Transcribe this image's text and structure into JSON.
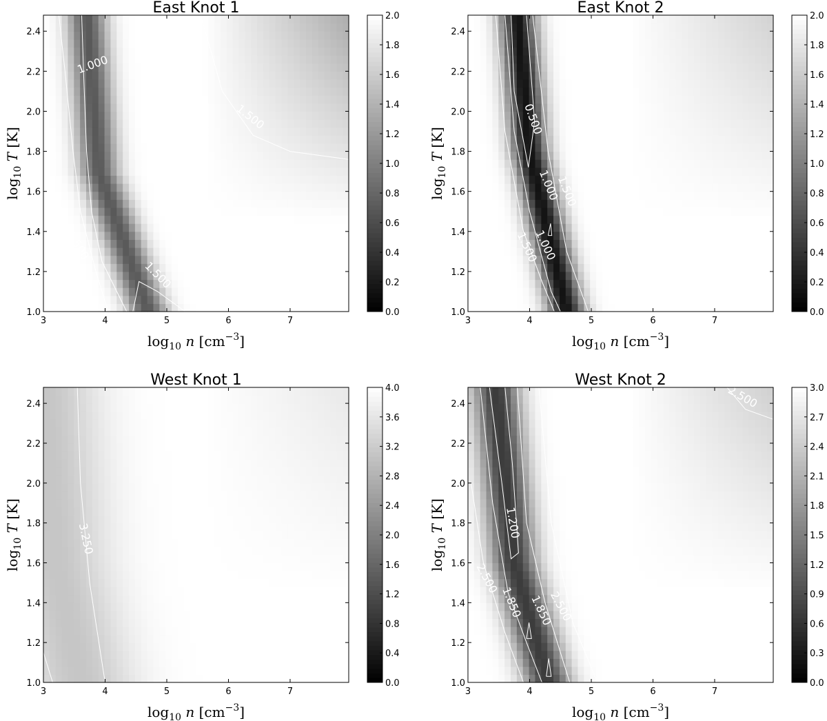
{
  "chart_data": [
    {
      "type": "heatmap",
      "title": "East Knot 1",
      "xlabel": "log10 n [cm^-3]",
      "ylabel": "log10 T [K]",
      "xlim": [
        3,
        7.95
      ],
      "ylim": [
        1.0,
        2.48
      ],
      "xticks": [
        "3",
        "4",
        "5",
        "6",
        "7"
      ],
      "yticks": [
        "1.0",
        "1.2",
        "1.4",
        "1.6",
        "1.8",
        "2.0",
        "2.2",
        "2.4"
      ],
      "colorbar": {
        "min": 0.0,
        "max": 2.0,
        "ticks": [
          "0.0",
          "0.2",
          "0.4",
          "0.6",
          "0.8",
          "1.0",
          "1.2",
          "1.4",
          "1.6",
          "1.8",
          "2.0"
        ]
      },
      "colormap": "gray",
      "field": {
        "valley": [
          [
            3.7,
            2.48
          ],
          [
            3.9,
            1.7
          ],
          [
            4.7,
            1.0
          ]
        ],
        "valley_min": 0.7,
        "valley_width": 0.32,
        "base": 2.0,
        "highn_highT_value": 1.35
      },
      "contours": [
        {
          "level": "1.000",
          "paths": [
            [
              [
                3.62,
                2.48
              ],
              [
                3.65,
                2.2
              ],
              [
                3.7,
                1.8
              ],
              [
                3.78,
                1.5
              ],
              [
                3.95,
                1.25
              ],
              [
                4.35,
                1.0
              ]
            ]
          ]
        },
        {
          "level": "1.500",
          "paths": [
            [
              [
                3.25,
                2.48
              ],
              [
                3.35,
                2.2
              ],
              [
                3.48,
                1.8
              ],
              [
                3.6,
                1.5
              ],
              [
                3.85,
                1.2
              ],
              [
                4.05,
                1.0
              ]
            ]
          ]
        },
        {
          "level": "1.500",
          "paths": [
            [
              [
                4.45,
                1.0
              ],
              [
                4.55,
                1.15
              ],
              [
                4.85,
                1.1
              ],
              [
                5.3,
                1.0
              ]
            ]
          ]
        },
        {
          "level": "1.500",
          "paths": [
            [
              [
                5.55,
                2.48
              ],
              [
                5.9,
                2.1
              ],
              [
                6.4,
                1.88
              ],
              [
                7.0,
                1.8
              ],
              [
                7.95,
                1.76
              ]
            ]
          ]
        }
      ],
      "contour_labels": [
        {
          "text": "1.000",
          "x": 3.8,
          "y": 2.23,
          "angle": -20
        },
        {
          "text": "1.500",
          "x": 6.35,
          "y": 1.97,
          "angle": 38
        },
        {
          "text": "1.500",
          "x": 3.55,
          "y": 1.33,
          "angle": 58
        },
        {
          "text": "1.500",
          "x": 4.85,
          "y": 1.18,
          "angle": 45
        }
      ]
    },
    {
      "type": "heatmap",
      "title": "East Knot 2",
      "xlabel": "log10 n [cm^-3]",
      "ylabel": "log10 T [K]",
      "xlim": [
        3,
        7.95
      ],
      "ylim": [
        1.0,
        2.48
      ],
      "xticks": [
        "3",
        "4",
        "5",
        "6",
        "7"
      ],
      "yticks": [
        "1.0",
        "1.2",
        "1.4",
        "1.6",
        "1.8",
        "2.0",
        "2.2",
        "2.4"
      ],
      "colorbar": {
        "min": 0.0,
        "max": 2.0,
        "ticks": [
          "0.0",
          "0.2",
          "0.4",
          "0.6",
          "0.8",
          "1.0",
          "1.2",
          "1.4",
          "1.6",
          "1.8",
          "2.0"
        ]
      },
      "colormap": "gray",
      "field": {
        "valley": [
          [
            3.8,
            2.48
          ],
          [
            4.0,
            1.8
          ],
          [
            4.6,
            1.0
          ]
        ],
        "valley_min": 0.15,
        "valley_width": 0.3,
        "base": 2.0,
        "highn_highT_value": 1.65
      },
      "contours": [
        {
          "level": "0.500",
          "paths": [
            [
              [
                3.7,
                2.48
              ],
              [
                3.75,
                2.1
              ],
              [
                3.98,
                1.72
              ],
              [
                4.08,
                1.95
              ],
              [
                3.95,
                2.48
              ]
            ]
          ]
        },
        {
          "level": "1.000",
          "paths": [
            [
              [
                3.6,
                2.48
              ],
              [
                3.75,
                1.9
              ],
              [
                4.0,
                1.5
              ],
              [
                4.35,
                1.1
              ],
              [
                4.5,
                1.0
              ]
            ]
          ]
        },
        {
          "level": "1.500",
          "paths": [
            [
              [
                3.45,
                2.48
              ],
              [
                3.6,
                1.9
              ],
              [
                3.9,
                1.4
              ],
              [
                4.2,
                1.15
              ],
              [
                4.4,
                1.0
              ]
            ]
          ]
        },
        {
          "level": "1.500",
          "paths": [
            [
              [
                4.05,
                2.48
              ],
              [
                4.3,
                1.8
              ],
              [
                4.6,
                1.3
              ],
              [
                4.95,
                1.0
              ]
            ]
          ]
        },
        {
          "level": "1.000",
          "paths": [
            [
              [
                4.3,
                1.38
              ],
              [
                4.34,
                1.44
              ],
              [
                4.36,
                1.38
              ],
              [
                4.3,
                1.38
              ]
            ]
          ]
        }
      ],
      "contour_labels": [
        {
          "text": "0.500",
          "x": 4.05,
          "y": 1.96,
          "angle": 70
        },
        {
          "text": "1.000",
          "x": 4.3,
          "y": 1.63,
          "angle": 68
        },
        {
          "text": "1.500",
          "x": 4.6,
          "y": 1.6,
          "angle": 68
        },
        {
          "text": "1.500",
          "x": 3.95,
          "y": 1.32,
          "angle": 65
        },
        {
          "text": "1.000",
          "x": 4.25,
          "y": 1.33,
          "angle": 65
        }
      ]
    },
    {
      "type": "heatmap",
      "title": "West Knot 1",
      "xlabel": "log10 n [cm^-3]",
      "ylabel": "log10 T [K]",
      "xlim": [
        3,
        7.95
      ],
      "ylim": [
        1.0,
        2.48
      ],
      "xticks": [
        "3",
        "4",
        "5",
        "6",
        "7"
      ],
      "yticks": [
        "1.0",
        "1.2",
        "1.4",
        "1.6",
        "1.8",
        "2.0",
        "2.2",
        "2.4"
      ],
      "colorbar": {
        "min": 0.0,
        "max": 4.0,
        "ticks": [
          "0.0",
          "0.4",
          "0.8",
          "1.2",
          "1.6",
          "2.0",
          "2.4",
          "2.8",
          "3.2",
          "3.6",
          "4.0"
        ]
      },
      "colormap": "gray",
      "field": {
        "valley": [
          [
            3.0,
            2.48
          ],
          [
            3.2,
            1.6
          ],
          [
            3.6,
            1.0
          ]
        ],
        "valley_min": 3.1,
        "valley_width": 0.9,
        "base": 4.0,
        "highn_highT_value": 3.65
      },
      "contours": [
        {
          "level": "3.250",
          "paths": [
            [
              [
                3.55,
                2.48
              ],
              [
                3.6,
                2.0
              ],
              [
                3.75,
                1.5
              ],
              [
                3.9,
                1.2
              ],
              [
                4.0,
                1.0
              ]
            ]
          ]
        },
        {
          "level": "3.250",
          "paths": [
            [
              [
                3.0,
                1.15
              ],
              [
                3.15,
                1.0
              ]
            ]
          ]
        }
      ],
      "contour_labels": [
        {
          "text": "3.250",
          "x": 3.68,
          "y": 1.72,
          "angle": 78
        }
      ]
    },
    {
      "type": "heatmap",
      "title": "West Knot 2",
      "xlabel": "log10 n [cm^-3]",
      "ylabel": "log10 T [K]",
      "xlim": [
        3,
        7.95
      ],
      "ylim": [
        1.0,
        2.48
      ],
      "xticks": [
        "3",
        "4",
        "5",
        "6",
        "7"
      ],
      "yticks": [
        "1.0",
        "1.2",
        "1.4",
        "1.6",
        "1.8",
        "2.0",
        "2.2",
        "2.4"
      ],
      "colorbar": {
        "min": 0.0,
        "max": 3.0,
        "ticks": [
          "0.0",
          "0.3",
          "0.6",
          "0.9",
          "1.2",
          "1.5",
          "1.8",
          "2.1",
          "2.4",
          "2.7",
          "3.0"
        ]
      },
      "colormap": "gray",
      "field": {
        "valley": [
          [
            3.45,
            2.48
          ],
          [
            3.75,
            1.6
          ],
          [
            4.3,
            1.0
          ]
        ],
        "valley_min": 0.7,
        "valley_width": 0.38,
        "base": 3.0,
        "highn_highT_value": 2.45
      },
      "contours": [
        {
          "level": "1.200",
          "paths": [
            [
              [
                3.35,
                2.48
              ],
              [
                3.55,
                2.0
              ],
              [
                3.7,
                1.62
              ],
              [
                3.82,
                1.65
              ],
              [
                3.72,
                2.1
              ],
              [
                3.6,
                2.48
              ]
            ]
          ]
        },
        {
          "level": "1.850",
          "paths": [
            [
              [
                3.2,
                2.48
              ],
              [
                3.4,
                1.9
              ],
              [
                3.65,
                1.45
              ],
              [
                3.95,
                1.2
              ],
              [
                4.2,
                1.0
              ]
            ]
          ]
        },
        {
          "level": "1.850",
          "paths": [
            [
              [
                3.8,
                2.48
              ],
              [
                3.95,
                1.8
              ],
              [
                4.25,
                1.4
              ],
              [
                4.55,
                1.1
              ],
              [
                4.65,
                1.0
              ]
            ]
          ]
        },
        {
          "level": "2.500",
          "paths": [
            [
              [
                3.05,
                2.0
              ],
              [
                3.25,
                1.6
              ],
              [
                3.6,
                1.25
              ],
              [
                3.9,
                1.0
              ]
            ]
          ]
        },
        {
          "level": "2.500",
          "paths": [
            [
              [
                4.15,
                2.48
              ],
              [
                4.35,
                1.8
              ],
              [
                4.7,
                1.3
              ],
              [
                5.1,
                1.0
              ]
            ]
          ]
        },
        {
          "level": "2.500",
          "paths": [
            [
              [
                7.2,
                2.48
              ],
              [
                7.5,
                2.37
              ],
              [
                7.95,
                2.32
              ]
            ]
          ]
        },
        {
          "level": "1.850",
          "paths": [
            [
              [
                3.95,
                1.22
              ],
              [
                3.99,
                1.3
              ],
              [
                4.03,
                1.22
              ],
              [
                3.95,
                1.22
              ]
            ]
          ]
        },
        {
          "level": "1.850",
          "paths": [
            [
              [
                4.27,
                1.03
              ],
              [
                4.31,
                1.12
              ],
              [
                4.35,
                1.03
              ],
              [
                4.27,
                1.03
              ]
            ]
          ]
        }
      ],
      "contour_labels": [
        {
          "text": "1.200",
          "x": 3.72,
          "y": 1.8,
          "angle": 80
        },
        {
          "text": "2.500",
          "x": 3.3,
          "y": 1.52,
          "angle": 62
        },
        {
          "text": "1.850",
          "x": 3.7,
          "y": 1.4,
          "angle": 68
        },
        {
          "text": "1.850",
          "x": 4.18,
          "y": 1.36,
          "angle": 65
        },
        {
          "text": "2.500",
          "x": 4.5,
          "y": 1.38,
          "angle": 62
        },
        {
          "text": "2.500",
          "x": 7.45,
          "y": 2.43,
          "angle": 30
        }
      ]
    }
  ]
}
